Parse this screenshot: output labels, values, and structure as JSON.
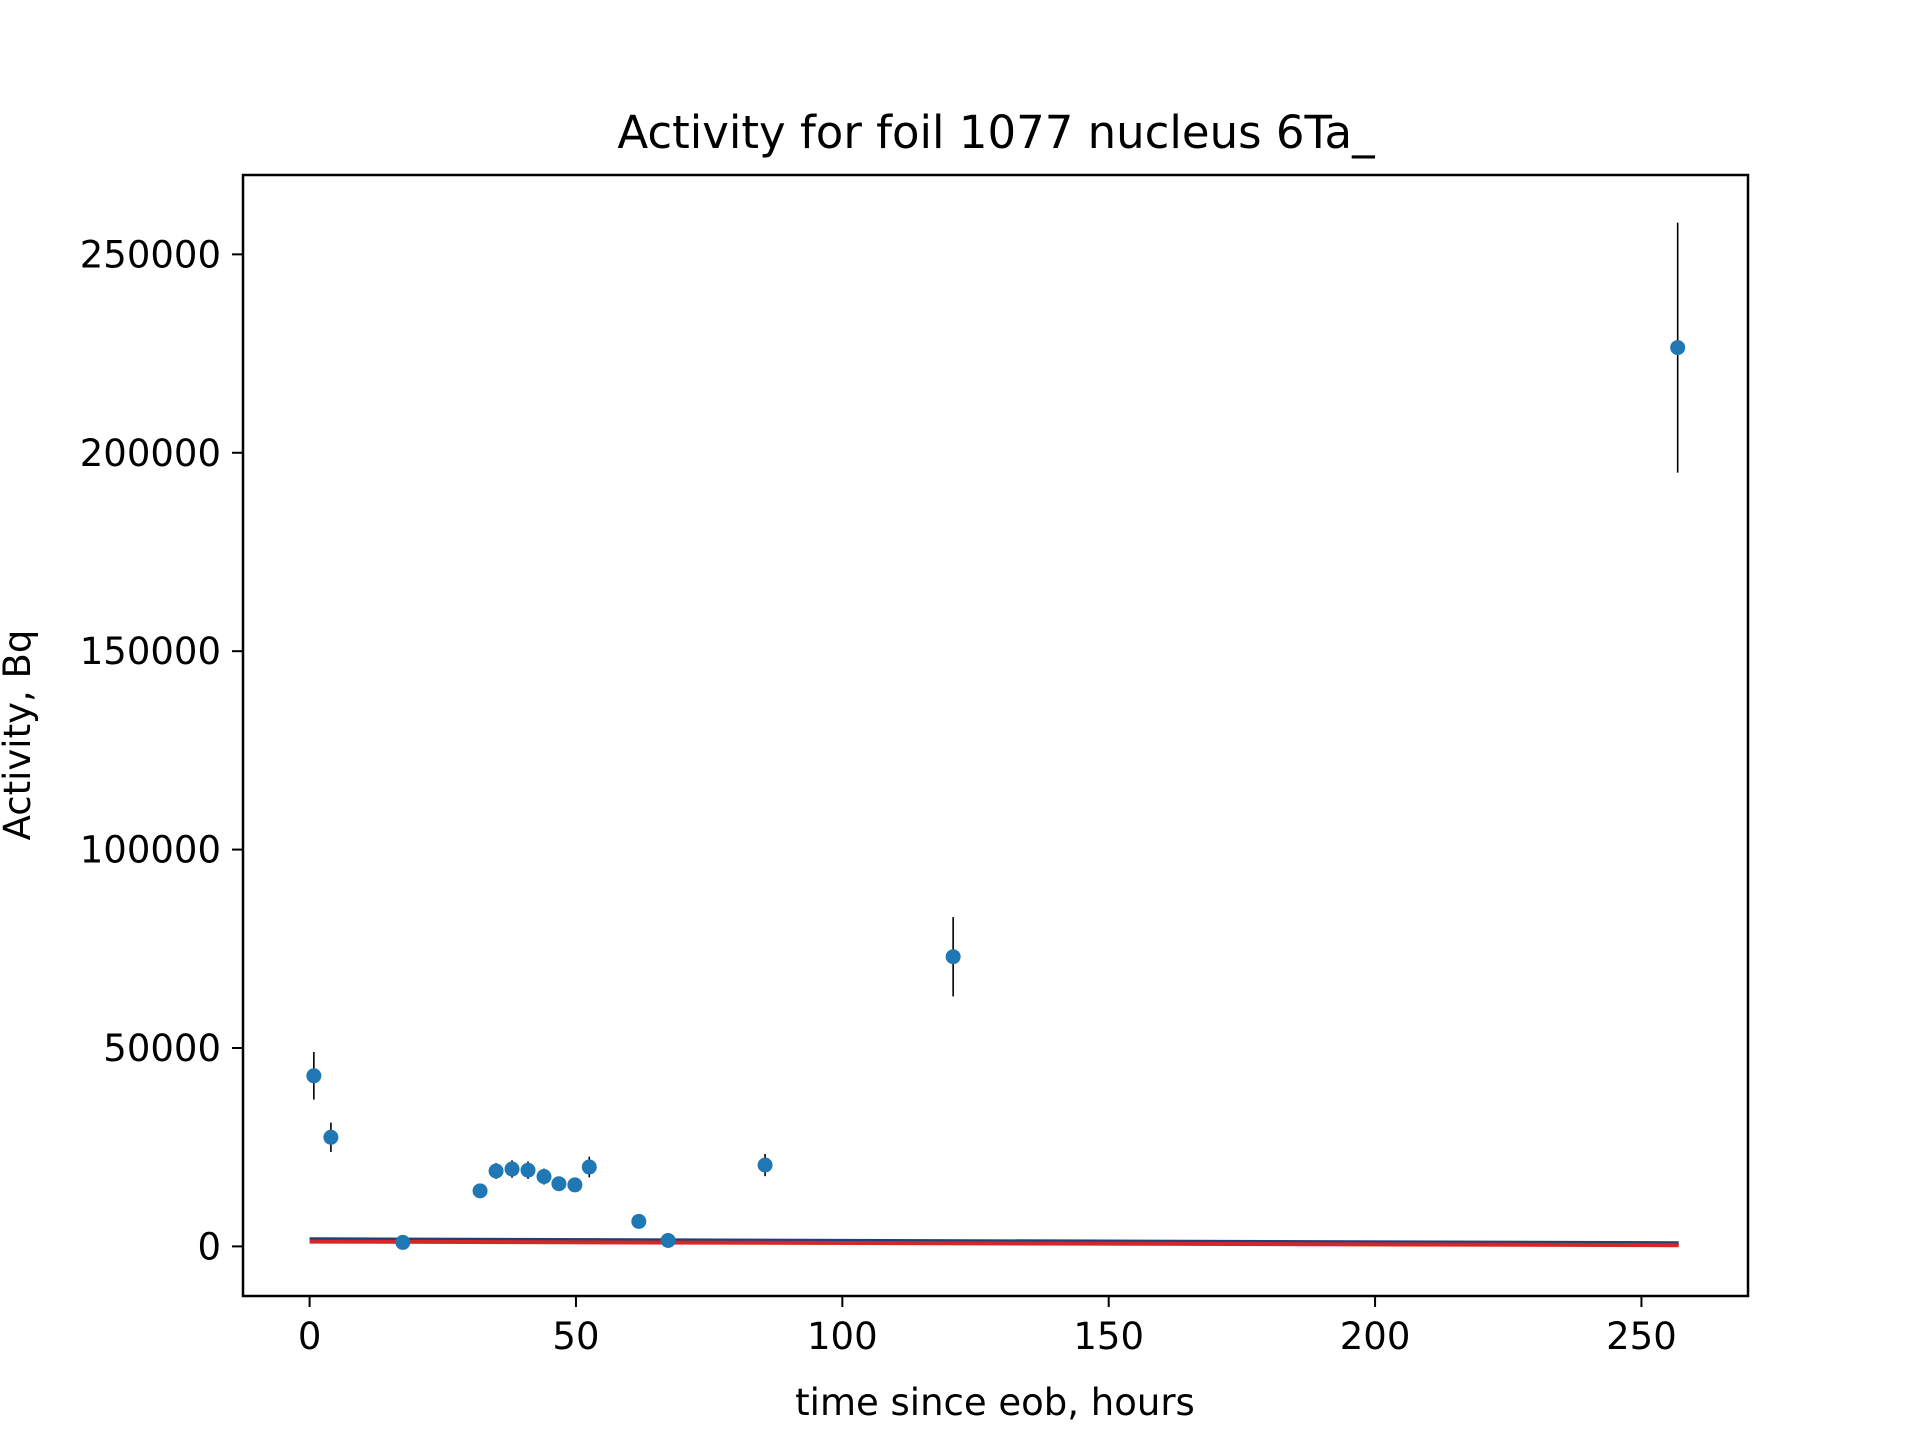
{
  "chart_data": {
    "type": "scatter",
    "title": "Activity for foil 1077 nucleus 6Ta_",
    "xlabel": "time since eob, hours",
    "ylabel": "Activity, Bq",
    "xlim": [
      -12.5,
      270
    ],
    "ylim": [
      -12500,
      270000
    ],
    "xticks": [
      0,
      50,
      100,
      150,
      200,
      250
    ],
    "yticks": [
      0,
      50000,
      100000,
      150000,
      200000,
      250000
    ],
    "xtick_labels": [
      "0",
      "50",
      "100",
      "150",
      "200",
      "250"
    ],
    "ytick_labels": [
      "0",
      "50000",
      "100000",
      "150000",
      "200000",
      "250000"
    ],
    "grid": false,
    "series": [
      {
        "kind": "errorbar",
        "color": "#1f77b4",
        "errorbar_color": "#000000",
        "points": [
          {
            "x": 0.8,
            "y": 43000,
            "err": 6000
          },
          {
            "x": 4.0,
            "y": 27500,
            "err": 3700
          },
          {
            "x": 17.5,
            "y": 1000,
            "err": 250
          },
          {
            "x": 32.0,
            "y": 14000,
            "err": 1500
          },
          {
            "x": 35.0,
            "y": 19000,
            "err": 2000
          },
          {
            "x": 38.0,
            "y": 19500,
            "err": 2200
          },
          {
            "x": 41.0,
            "y": 19200,
            "err": 2200
          },
          {
            "x": 44.0,
            "y": 17600,
            "err": 2000
          },
          {
            "x": 46.8,
            "y": 15800,
            "err": 1700
          },
          {
            "x": 49.8,
            "y": 15500,
            "err": 1700
          },
          {
            "x": 52.5,
            "y": 20000,
            "err": 2600
          },
          {
            "x": 61.8,
            "y": 6300,
            "err": 700
          },
          {
            "x": 67.3,
            "y": 1500,
            "err": 300
          },
          {
            "x": 85.5,
            "y": 20500,
            "err": 2800
          },
          {
            "x": 120.8,
            "y": 73000,
            "err": 10000
          },
          {
            "x": 256.8,
            "y": 226500,
            "err": 31500
          }
        ]
      },
      {
        "kind": "line",
        "color": "#1f3f7a",
        "points": [
          {
            "x": 0,
            "y": 1800
          },
          {
            "x": 257,
            "y": 800
          }
        ]
      },
      {
        "kind": "line",
        "color": "#d62728",
        "points": [
          {
            "x": 0,
            "y": 1200
          },
          {
            "x": 257,
            "y": 300
          }
        ]
      }
    ]
  }
}
